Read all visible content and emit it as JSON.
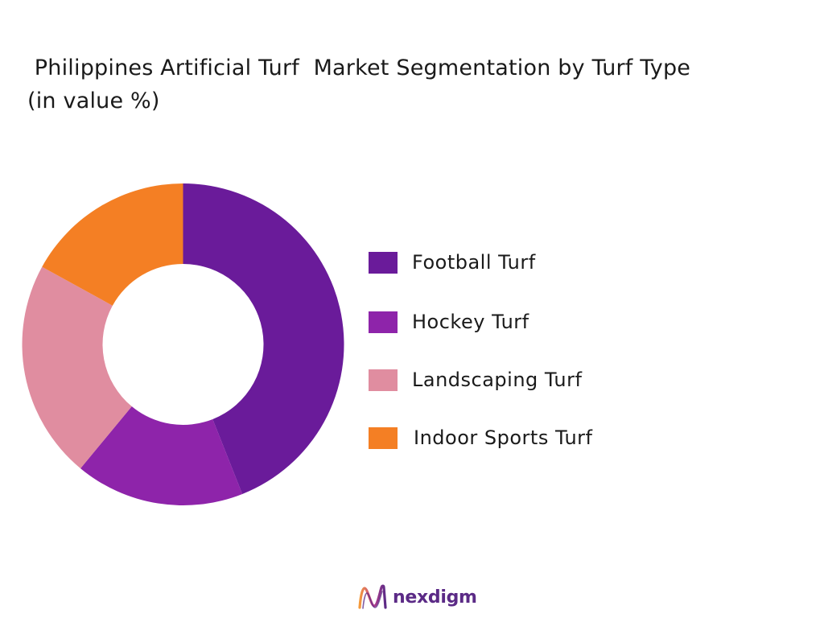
{
  "chart_data": {
    "type": "pie",
    "title": " Philippines Artificial Turf  Market Segmentation by Turf Type\n(in value %)",
    "categories": [
      "Football Turf",
      "Hockey Turf",
      "Landscaping Turf",
      "Indoor Sports Turf"
    ],
    "values": [
      44,
      17,
      22,
      17
    ],
    "colors": [
      "#6a1b9a",
      "#8e24aa",
      "#e08da0",
      "#f47f24"
    ],
    "legend_position": "right",
    "donut": true
  },
  "brand": {
    "name": "nexdigm"
  }
}
